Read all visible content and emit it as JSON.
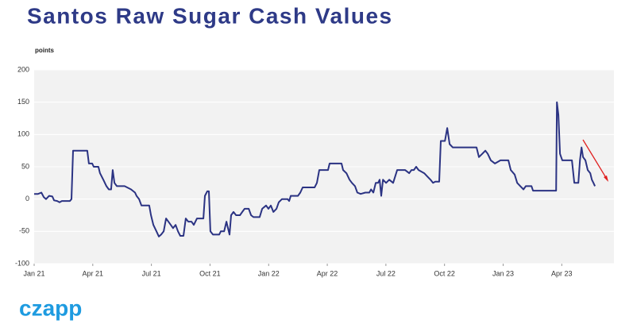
{
  "chart_data": {
    "type": "line",
    "title": "Santos Raw Sugar Cash Values",
    "y_label": "points",
    "logo": "czapp",
    "series": [
      {
        "name": "Santos raw sugar cash value",
        "color": "#2b3383",
        "x": [
          0,
          0.2,
          0.37,
          0.49,
          0.61,
          0.77,
          0.93,
          1.02,
          1.18,
          1.3,
          1.42,
          1.83,
          1.91,
          1.99,
          2.72,
          2.8,
          2.97,
          3.05,
          3.29,
          3.37,
          3.54,
          3.7,
          3.82,
          3.94,
          4.02,
          4.11,
          4.23,
          4.63,
          4.76,
          4.96,
          5.16,
          5.24,
          5.37,
          5.49,
          5.89,
          5.98,
          6.1,
          6.26,
          6.38,
          6.5,
          6.63,
          6.75,
          6.87,
          6.99,
          7.11,
          7.24,
          7.36,
          7.48,
          7.64,
          7.76,
          7.89,
          8.05,
          8.17,
          8.33,
          8.5,
          8.66,
          8.74,
          8.86,
          8.94,
          9.02,
          9.15,
          9.47,
          9.55,
          9.72,
          9.84,
          10,
          10.08,
          10.2,
          10.33,
          10.53,
          10.65,
          10.77,
          10.98,
          11.1,
          11.22,
          11.54,
          11.67,
          11.87,
          11.99,
          12.11,
          12.24,
          12.4,
          12.52,
          12.68,
          12.97,
          13.05,
          13.13,
          13.5,
          13.62,
          13.74,
          14.35,
          14.47,
          14.59,
          15.04,
          15.12,
          15.73,
          15.81,
          15.98,
          16.14,
          16.26,
          16.42,
          16.54,
          16.71,
          16.95,
          17.15,
          17.24,
          17.36,
          17.48,
          17.6,
          17.68,
          17.76,
          17.85,
          18.01,
          18.17,
          18.37,
          18.58,
          18.98,
          19.19,
          19.31,
          19.43,
          19.55,
          19.67,
          19.96,
          20.12,
          20.28,
          20.41,
          20.53,
          20.73,
          20.81,
          21.02,
          21.14,
          21.26,
          21.42,
          22.64,
          22.76,
          22.93,
          23.09,
          23.21,
          23.37,
          23.58,
          23.86,
          24.27,
          24.39,
          24.59,
          24.72,
          24.88,
          25.04,
          25.16,
          25.45,
          25.53,
          26.71,
          26.75,
          26.83,
          26.91,
          27.03,
          27.52,
          27.64,
          27.85,
          27.93,
          28.01,
          28.09,
          28.21,
          28.33,
          28.46,
          28.54,
          28.62,
          28.7
        ],
        "values": [
          8,
          8,
          10,
          3,
          0,
          5,
          4,
          -2,
          -3,
          -5,
          -3,
          -3,
          0,
          75,
          75,
          55,
          55,
          50,
          50,
          40,
          30,
          20,
          15,
          15,
          45,
          25,
          20,
          20,
          18,
          15,
          10,
          5,
          0,
          -10,
          -10,
          -25,
          -40,
          -50,
          -58,
          -55,
          -50,
          -30,
          -35,
          -40,
          -45,
          -40,
          -50,
          -57,
          -57,
          -30,
          -35,
          -35,
          -40,
          -30,
          -30,
          -30,
          5,
          12,
          12,
          -50,
          -55,
          -55,
          -50,
          -50,
          -35,
          -55,
          -25,
          -20,
          -25,
          -25,
          -20,
          -15,
          -15,
          -25,
          -28,
          -28,
          -15,
          -10,
          -15,
          -10,
          -20,
          -15,
          -5,
          0,
          0,
          -3,
          5,
          5,
          10,
          18,
          18,
          25,
          45,
          45,
          55,
          55,
          45,
          40,
          30,
          25,
          20,
          10,
          8,
          10,
          10,
          15,
          10,
          25,
          25,
          30,
          5,
          30,
          25,
          30,
          25,
          45,
          45,
          40,
          45,
          45,
          50,
          45,
          40,
          35,
          30,
          25,
          27,
          27,
          90,
          90,
          110,
          85,
          80,
          80,
          65,
          70,
          75,
          70,
          60,
          55,
          60,
          60,
          45,
          38,
          25,
          20,
          15,
          20,
          20,
          13,
          13,
          150,
          130,
          70,
          60,
          60,
          25,
          25,
          60,
          80,
          65,
          60,
          45,
          40,
          30,
          25,
          20
        ]
      }
    ],
    "xlim": [
      0,
      29.67
    ],
    "xticks": [
      {
        "value": 0,
        "label": "Jan 21"
      },
      {
        "value": 3,
        "label": "Apr 21"
      },
      {
        "value": 6,
        "label": "Jul 21"
      },
      {
        "value": 9,
        "label": "Oct 21"
      },
      {
        "value": 12,
        "label": "Jan 22"
      },
      {
        "value": 15,
        "label": "Apr 22"
      },
      {
        "value": 18,
        "label": "Jul 22"
      },
      {
        "value": 21,
        "label": "Oct 22"
      },
      {
        "value": 24,
        "label": "Jan 23"
      },
      {
        "value": 27,
        "label": "Apr 23"
      }
    ],
    "ylim": [
      -100,
      200
    ],
    "yticks": [
      -100,
      -50,
      0,
      50,
      100,
      150,
      200
    ],
    "grid": true
  }
}
